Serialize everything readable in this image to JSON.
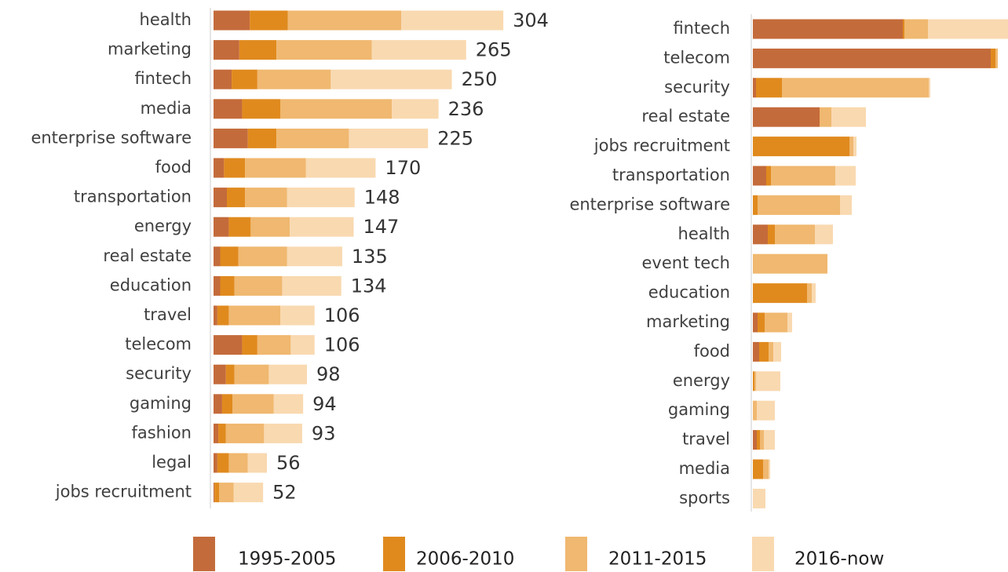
{
  "chart_data": [
    {
      "type": "stacked-bar-h",
      "categories": [
        "health",
        "marketing",
        "fintech",
        "media",
        "enterprise software",
        "food",
        "transportation",
        "energy",
        "real estate",
        "education",
        "travel",
        "telecom",
        "security",
        "gaming",
        "fashion",
        "legal",
        "jobs recruitment"
      ],
      "series": [
        {
          "name": "1995-2005",
          "color": "#c46b3b",
          "values": [
            38,
            27,
            19,
            30,
            36,
            11,
            14,
            16,
            7,
            7,
            4,
            30,
            13,
            9,
            5,
            4,
            1
          ]
        },
        {
          "name": "2006-2010",
          "color": "#e08a1e",
          "values": [
            40,
            39,
            27,
            40,
            30,
            22,
            19,
            23,
            19,
            15,
            12,
            16,
            9,
            11,
            8,
            12,
            5
          ]
        },
        {
          "name": "2011-2015",
          "color": "#f0b870",
          "values": [
            119,
            100,
            77,
            117,
            76,
            64,
            44,
            41,
            51,
            50,
            54,
            35,
            36,
            43,
            40,
            20,
            15
          ]
        },
        {
          "name": "2016-now",
          "color": "#f9d9b0",
          "values": [
            107,
            99,
            127,
            49,
            83,
            73,
            71,
            67,
            58,
            62,
            36,
            25,
            40,
            31,
            40,
            20,
            31
          ]
        }
      ],
      "totals": [
        304,
        265,
        250,
        236,
        225,
        170,
        148,
        147,
        135,
        134,
        106,
        106,
        98,
        94,
        93,
        56,
        52
      ],
      "xlim": [
        0,
        350
      ]
    },
    {
      "type": "stacked-bar-h",
      "categories": [
        "fintech",
        "telecom",
        "security",
        "real estate",
        "jobs recruitment",
        "transportation",
        "enterprise software",
        "health",
        "event tech",
        "education",
        "marketing",
        "food",
        "energy",
        "gaming",
        "travel",
        "media",
        "sports"
      ],
      "series": [
        {
          "name": "1995-2005",
          "color": "#c46b3b",
          "values": [
            191,
            303,
            4,
            85,
            0,
            17,
            0,
            19,
            0,
            0,
            6,
            8,
            0,
            0,
            5,
            0,
            0
          ]
        },
        {
          "name": "2006-2010",
          "color": "#e08a1e",
          "values": [
            2,
            6,
            33,
            0,
            123,
            6,
            6,
            9,
            0,
            69,
            9,
            12,
            2,
            0,
            4,
            13,
            0
          ]
        },
        {
          "name": "2011-2015",
          "color": "#f0b870",
          "values": [
            30,
            3,
            187,
            15,
            5,
            82,
            105,
            51,
            95,
            6,
            29,
            6,
            2,
            5,
            5,
            7,
            0
          ]
        },
        {
          "name": "2016-now",
          "color": "#f9d9b0",
          "values": [
            102,
            0,
            2,
            44,
            4,
            26,
            15,
            23,
            0,
            5,
            6,
            10,
            31,
            23,
            14,
            2,
            16
          ]
        }
      ],
      "xlim": [
        0,
        325
      ]
    }
  ]
}
